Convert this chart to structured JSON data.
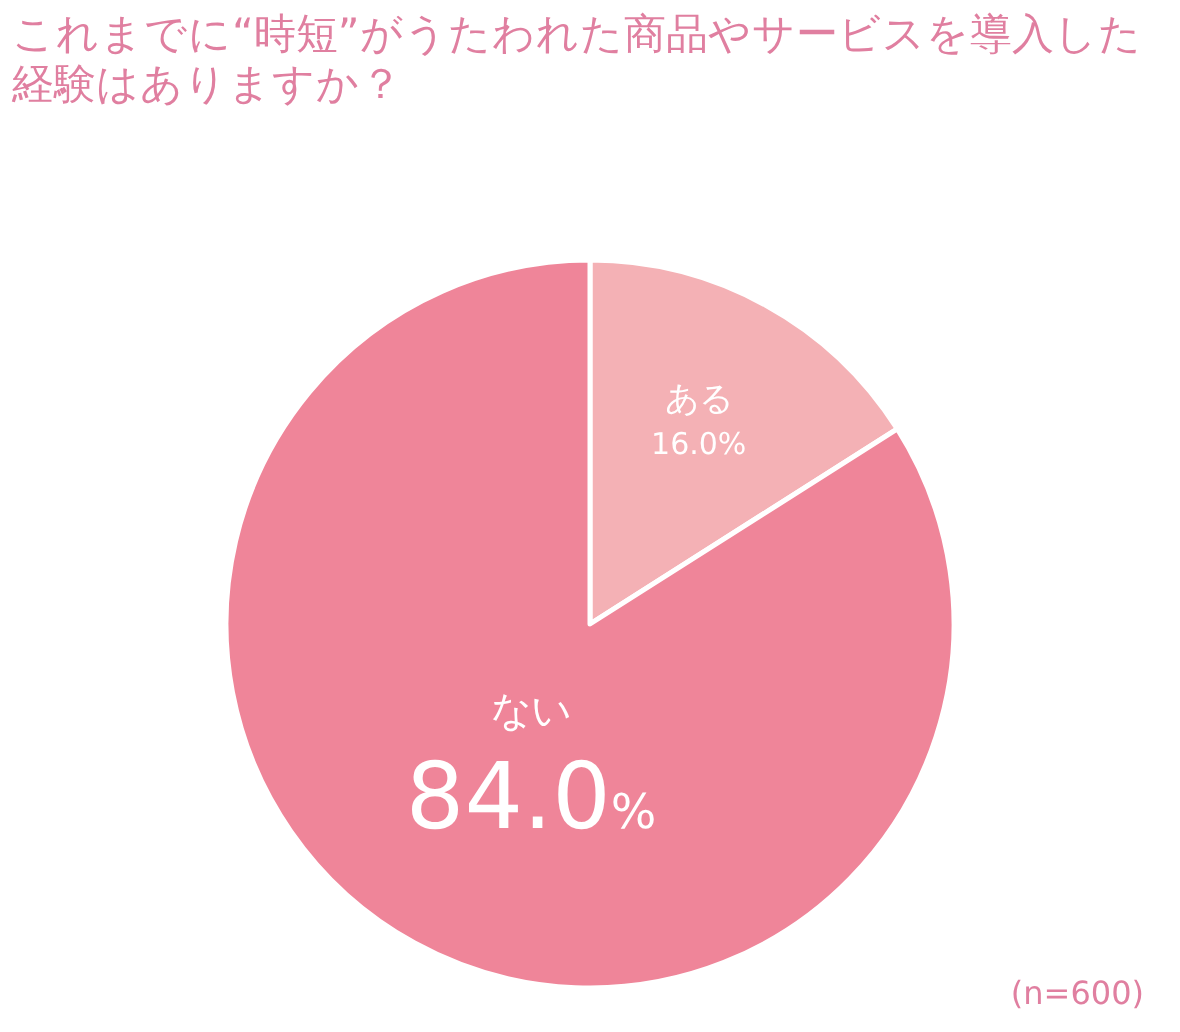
{
  "chart_data": {
    "type": "pie",
    "title": "これまでに“時短”がうたわれた商品やサービスを導入した経験はありますか？",
    "categories": [
      "ある",
      "ない"
    ],
    "values": [
      16.0,
      84.0
    ],
    "value_labels": [
      "16.0%",
      "84.0%"
    ],
    "colors": [
      "#f4b1b5",
      "#ef8599"
    ],
    "annotations": [
      "(n=600)"
    ]
  }
}
